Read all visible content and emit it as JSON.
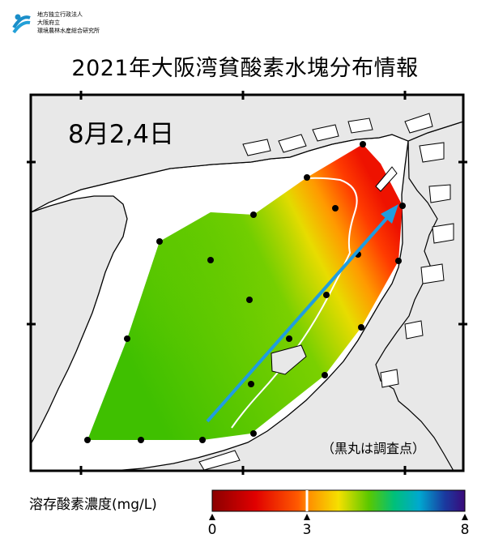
{
  "header": {
    "org_lines": [
      "地方独立行政法人",
      "大阪府立",
      "環境農林水産総合研究所"
    ]
  },
  "title": "2021年大阪湾貧酸素水塊分布情報",
  "date_label": "8月2,4日",
  "note": "（黒丸は調査点）",
  "legend": {
    "title": "溶存酸素濃度(mg/L)",
    "ticks": [
      "0",
      "3",
      "8"
    ],
    "range": [
      0,
      8
    ],
    "threshold": 3,
    "colors": {
      "low": "#8b0000",
      "mid_red": "#ff2a00",
      "orange": "#ff9a00",
      "yellow": "#f2e200",
      "green": "#5ac800",
      "cyan": "#00b8c8",
      "blue": "#1a2a9a",
      "high": "#3a0a7a"
    }
  },
  "map": {
    "land_color": "#e8e8e8",
    "sea_color": "#ffffff",
    "arrow_color": "#1f9de0",
    "station_count": 22,
    "contour_level_mgL": 3
  }
}
